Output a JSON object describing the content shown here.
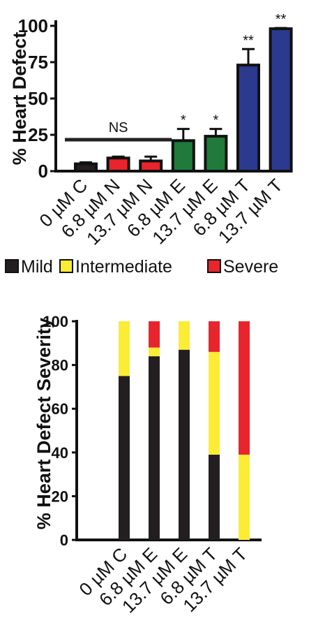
{
  "chart_data": [
    {
      "type": "bar",
      "ylabel": "% Heart Defect",
      "ylim": [
        0,
        100
      ],
      "yticks": [
        0,
        25,
        50,
        75,
        100
      ],
      "categories": [
        "0 µM C",
        "6.8 µM N",
        "13.7 µM N",
        "6.8 µM E",
        "13.7 µM E",
        "6.8 µM T",
        "13.7 µM T"
      ],
      "values": [
        5,
        9,
        7,
        21,
        24,
        73,
        98
      ],
      "errors": [
        1,
        1,
        3,
        8,
        5,
        11,
        0.5
      ],
      "colors": [
        "#231f20",
        "#e8242c",
        "#e8242c",
        "#1f7a3c",
        "#1f7a3c",
        "#2b3a8f",
        "#2b3a8f"
      ],
      "significance": [
        "",
        "",
        "",
        "*",
        "*",
        "**",
        "**"
      ],
      "annotation": {
        "text": "NS",
        "from": 0,
        "to": 2
      }
    },
    {
      "type": "bar",
      "stacked": true,
      "ylabel": "% Heart Defect Severity",
      "ylim": [
        0,
        100
      ],
      "yticks": [
        0,
        20,
        40,
        60,
        80,
        100
      ],
      "categories": [
        "0 µM C",
        "6.8 µM E",
        "13.7 µM E",
        "6.8 µM T",
        "13.7 µM T"
      ],
      "series": [
        {
          "name": "Mild",
          "color": "#231f20",
          "values": [
            75,
            84,
            87,
            39,
            0
          ]
        },
        {
          "name": "Intermediate",
          "color": "#fbec34",
          "values": [
            25,
            4,
            13,
            47,
            39
          ]
        },
        {
          "name": "Severe",
          "color": "#e8242c",
          "values": [
            0,
            12,
            0,
            14,
            61
          ]
        }
      ],
      "legend_position": "top"
    }
  ]
}
